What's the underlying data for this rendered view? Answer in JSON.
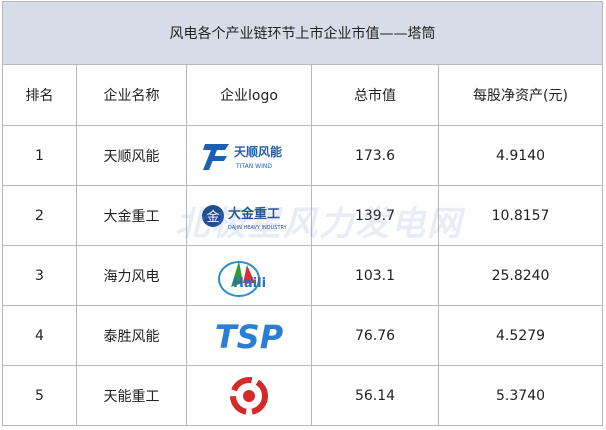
{
  "table": {
    "title": "风电各个产业链环节上市企业市值——塔筒",
    "headers": [
      "排名",
      "企业名称",
      "企业logo",
      "总市值",
      "每股净资产(元)"
    ],
    "rows": [
      {
        "rank": "1",
        "company": "天顺风能",
        "logo_text": [
          "天顺风能",
          "TITAN WIND"
        ],
        "market_cap": "173.6",
        "net_asset_per_share": "4.9140"
      },
      {
        "rank": "2",
        "company": "大金重工",
        "logo_text": [
          "大金重工",
          "DAJIN HEAVY INDUSTRY"
        ],
        "market_cap": "139.7",
        "net_asset_per_share": "10.8157"
      },
      {
        "rank": "3",
        "company": "海力风电",
        "logo_text": [
          "Haili"
        ],
        "market_cap": "103.1",
        "net_asset_per_share": "25.8240"
      },
      {
        "rank": "4",
        "company": "泰胜风能",
        "logo_text": [
          "TSP"
        ],
        "market_cap": "76.76",
        "net_asset_per_share": "4.5279"
      },
      {
        "rank": "5",
        "company": "天能重工",
        "market_cap": "56.14",
        "net_asset_per_share": "5.3740"
      }
    ]
  },
  "watermark": "北极星风力发电网"
}
